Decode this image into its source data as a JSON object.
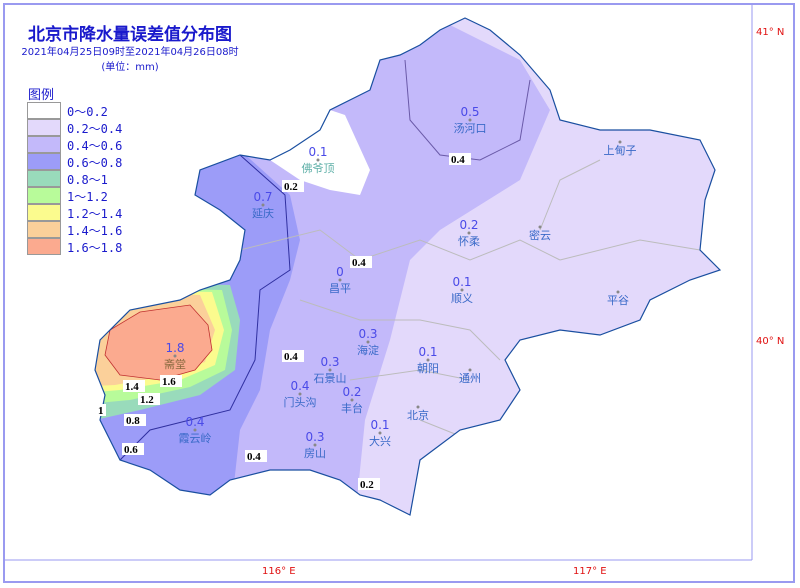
{
  "title": "北京市降水量误差值分布图",
  "subtitle": "2021年04月25日09时至2021年04月26日08时",
  "unit": "(单位：mm)",
  "legend": {
    "title": "图例",
    "items": [
      {
        "label": "0～0.2",
        "color": "#ffffff"
      },
      {
        "label": "0.2～0.4",
        "color": "#e3d9fb"
      },
      {
        "label": "0.4～0.6",
        "color": "#c3b9fa"
      },
      {
        "label": "0.6～0.8",
        "color": "#9c9cf8"
      },
      {
        "label": "0.8～1",
        "color": "#99dbbb"
      },
      {
        "label": "1～1.2",
        "color": "#b8fb9a"
      },
      {
        "label": "1.2～1.4",
        "color": "#fbfb8e"
      },
      {
        "label": "1.4～1.6",
        "color": "#fbd09a"
      },
      {
        "label": "1.6～1.8",
        "color": "#fbaa8f"
      }
    ]
  },
  "axes": {
    "lat": [
      "41° N",
      "40° N"
    ],
    "lon": [
      "116° E",
      "117° E"
    ]
  },
  "stations": [
    {
      "name": "汤河口",
      "value": "0.5"
    },
    {
      "name": "佛爷顶",
      "value": "0.1"
    },
    {
      "name": "延庆",
      "value": "0.7"
    },
    {
      "name": "上甸子",
      "value": ""
    },
    {
      "name": "怀柔",
      "value": "0.2"
    },
    {
      "name": "密云",
      "value": ""
    },
    {
      "name": "昌平",
      "value": "0"
    },
    {
      "name": "顺义",
      "value": "0.1"
    },
    {
      "name": "平谷",
      "value": ""
    },
    {
      "name": "斋堂",
      "value": "1.8"
    },
    {
      "name": "海淀",
      "value": "0.3"
    },
    {
      "name": "石景山",
      "value": "0.3"
    },
    {
      "name": "门头沟",
      "value": "0.4"
    },
    {
      "name": "丰台",
      "value": "0.2"
    },
    {
      "name": "朝阳",
      "value": "0.1"
    },
    {
      "name": "通州",
      "value": ""
    },
    {
      "name": "北京",
      "value": ""
    },
    {
      "name": "霞云岭",
      "value": "0.4"
    },
    {
      "name": "房山",
      "value": "0.3"
    },
    {
      "name": "大兴",
      "value": "0.1"
    }
  ],
  "contour_labels": [
    "0.4",
    "0.2",
    "0.4",
    "0.4",
    "1.6",
    "1.4",
    "1.2",
    "1",
    "0.8",
    "0.6",
    "0.4",
    "0.2"
  ]
}
